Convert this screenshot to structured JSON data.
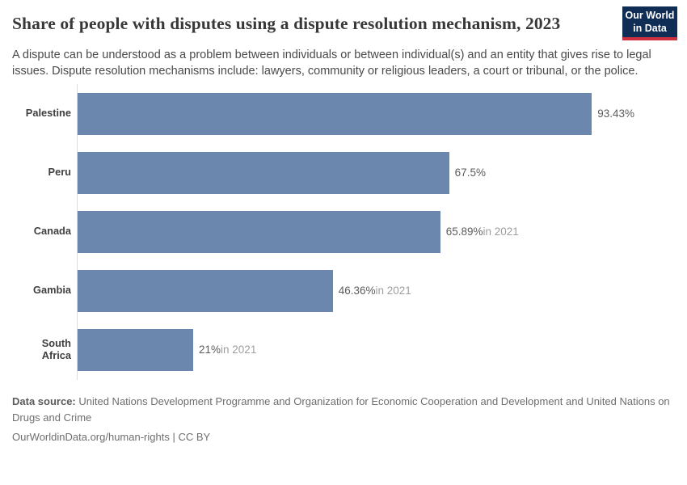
{
  "header": {
    "title": "Share of people with disputes using a dispute resolution mechanism, 2023",
    "logo": {
      "line1": "Our World",
      "line2": "in Data"
    }
  },
  "subtitle": "A dispute can be understood as a problem between individuals or between individual(s) and an entity that gives rise to legal issues. Dispute resolution mechanisms include: lawyers, community or religious leaders, a court or tribunal, or the police.",
  "chart_data": {
    "type": "bar",
    "orientation": "horizontal",
    "title": "Share of people with disputes using a dispute resolution mechanism, 2023",
    "categories": [
      "Palestine",
      "Peru",
      "Canada",
      "Gambia",
      "South Africa"
    ],
    "values": [
      93.43,
      67.5,
      65.89,
      46.36,
      21
    ],
    "value_labels": [
      "93.43%",
      "67.5%",
      "65.89%",
      "46.36%",
      "21%"
    ],
    "value_suffixes": [
      "",
      "",
      "in 2021",
      "in 2021",
      "in 2021"
    ],
    "xlabel": "",
    "ylabel": "",
    "xlim": [
      0,
      100
    ],
    "grid": false,
    "legend": false,
    "bar_color": "#6c87ad"
  },
  "colors": {
    "bar": "#6c87ad",
    "logo_background": "#0f2d55",
    "logo_stripe": "#cf2f3f",
    "value_label": "#5c5c5c",
    "value_suffix": "#9e9e9e"
  },
  "footer": {
    "datasource_label": "Data source:",
    "datasource_text": " United Nations Development Programme and Organization for Economic Cooperation and Development and United Nations on Drugs and Crime",
    "url_line": "OurWorldinData.org/human-rights | CC BY"
  }
}
